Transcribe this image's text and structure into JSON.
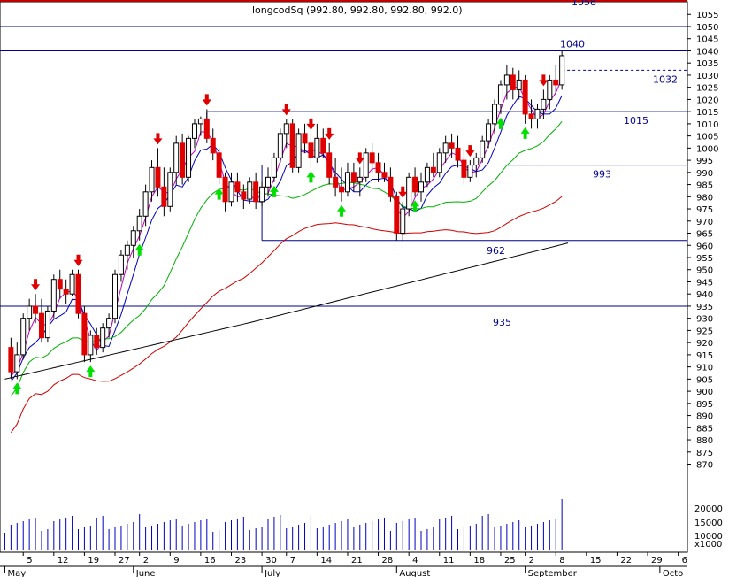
{
  "chart_data": {
    "type": "candlestick",
    "title": "longcodSq (992.80, 992.80, 992.80, 992.0)",
    "ylim": [
      860,
      1058
    ],
    "y_ticks": [
      870,
      875,
      880,
      885,
      890,
      895,
      900,
      905,
      910,
      915,
      920,
      925,
      930,
      935,
      940,
      945,
      950,
      955,
      960,
      965,
      970,
      975,
      980,
      985,
      990,
      995,
      1000,
      1005,
      1010,
      1015,
      1020,
      1025,
      1030,
      1035,
      1040,
      1045,
      1050,
      1055
    ],
    "volume_ticks": [
      "20000",
      "15000",
      "10000",
      "x1000"
    ],
    "x_day_labels": [
      {
        "label": "5",
        "idx": 3
      },
      {
        "label": "12",
        "idx": 8
      },
      {
        "label": "19",
        "idx": 13
      },
      {
        "label": "27",
        "idx": 18
      },
      {
        "label": "2",
        "idx": 22
      },
      {
        "label": "9",
        "idx": 27
      },
      {
        "label": "16",
        "idx": 32
      },
      {
        "label": "23",
        "idx": 37
      },
      {
        "label": "30",
        "idx": 42
      },
      {
        "label": "7",
        "idx": 46
      },
      {
        "label": "14",
        "idx": 51
      },
      {
        "label": "21",
        "idx": 56
      },
      {
        "label": "28",
        "idx": 61
      },
      {
        "label": "4",
        "idx": 66
      },
      {
        "label": "11",
        "idx": 71
      },
      {
        "label": "18",
        "idx": 76
      },
      {
        "label": "25",
        "idx": 81
      },
      {
        "label": "2",
        "idx": 85
      },
      {
        "label": "8",
        "idx": 90
      },
      {
        "label": "15",
        "idx": 95
      },
      {
        "label": "22",
        "idx": 100
      },
      {
        "label": "29",
        "idx": 105
      },
      {
        "label": "6",
        "idx": 110
      }
    ],
    "x_month_labels": [
      {
        "label": "May",
        "idx": 0
      },
      {
        "label": "June",
        "idx": 21
      },
      {
        "label": "July",
        "idx": 42
      },
      {
        "label": "August",
        "idx": 64
      },
      {
        "label": "September",
        "idx": 85
      },
      {
        "label": "Octo",
        "idx": 107
      }
    ],
    "levels": [
      {
        "value": 1050,
        "label": "",
        "x_start_idx": 0,
        "x_end_idx": 111,
        "style": "solid"
      },
      {
        "value": 1040,
        "label": "1040",
        "x_start_idx": 0,
        "x_end_idx": 111,
        "style": "solid"
      },
      {
        "value": 1032,
        "label": "1032",
        "x_start_idx": 91,
        "x_end_idx": 111,
        "style": "dashed"
      },
      {
        "value": 1015,
        "label": "1015",
        "x_start_idx": 33,
        "x_end_idx": 111,
        "style": "solid"
      },
      {
        "value": 993,
        "label": "993",
        "x_start_idx": 82,
        "x_end_idx": 111,
        "style": "solid"
      },
      {
        "value": 962,
        "label": "962",
        "x_start_idx": 42,
        "x_end_idx": 111,
        "style": "solid"
      },
      {
        "value": 935,
        "label": "935",
        "x_start_idx": 0,
        "x_end_idx": 111,
        "style": "solid"
      }
    ],
    "level_extra_label": "1058",
    "channel_verticals": [
      {
        "idx": 42,
        "from": 962,
        "to": 993
      },
      {
        "idx": 33,
        "from": 1015,
        "to": 1012
      }
    ],
    "candles": [
      [
        918,
        922,
        905,
        908
      ],
      [
        908,
        920,
        905,
        915
      ],
      [
        915,
        932,
        913,
        930
      ],
      [
        930,
        938,
        925,
        935
      ],
      [
        935,
        940,
        928,
        932
      ],
      [
        932,
        938,
        920,
        922
      ],
      [
        922,
        935,
        920,
        933
      ],
      [
        933,
        948,
        930,
        946
      ],
      [
        946,
        950,
        938,
        942
      ],
      [
        942,
        946,
        936,
        940
      ],
      [
        940,
        950,
        939,
        948
      ],
      [
        948,
        950,
        930,
        932
      ],
      [
        932,
        935,
        912,
        915
      ],
      [
        915,
        925,
        912,
        923
      ],
      [
        923,
        926,
        915,
        918
      ],
      [
        918,
        928,
        916,
        926
      ],
      [
        926,
        932,
        922,
        930
      ],
      [
        930,
        950,
        928,
        948
      ],
      [
        948,
        958,
        945,
        956
      ],
      [
        956,
        962,
        950,
        960
      ],
      [
        960,
        968,
        955,
        966
      ],
      [
        966,
        975,
        962,
        972
      ],
      [
        972,
        985,
        968,
        982
      ],
      [
        982,
        995,
        978,
        992
      ],
      [
        992,
        1000,
        980,
        984
      ],
      [
        984,
        992,
        972,
        976
      ],
      [
        976,
        992,
        974,
        990
      ],
      [
        990,
        1005,
        985,
        1002
      ],
      [
        1002,
        1006,
        985,
        988
      ],
      [
        988,
        1005,
        986,
        1004
      ],
      [
        1004,
        1012,
        1000,
        1010
      ],
      [
        1010,
        1013,
        1005,
        1012
      ],
      [
        1012,
        1016,
        1002,
        1004
      ],
      [
        1004,
        1008,
        995,
        998
      ],
      [
        998,
        1000,
        985,
        988
      ],
      [
        988,
        990,
        974,
        978
      ],
      [
        978,
        990,
        976,
        986
      ],
      [
        986,
        990,
        978,
        982
      ],
      [
        982,
        985,
        975,
        979
      ],
      [
        979,
        988,
        977,
        986
      ],
      [
        986,
        990,
        975,
        978
      ],
      [
        978,
        986,
        976,
        984
      ],
      [
        984,
        992,
        980,
        988
      ],
      [
        988,
        998,
        986,
        996
      ],
      [
        996,
        1008,
        994,
        1006
      ],
      [
        1006,
        1012,
        1000,
        1010
      ],
      [
        1010,
        1012,
        990,
        992
      ],
      [
        992,
        1008,
        990,
        1006
      ],
      [
        1006,
        1010,
        998,
        1002
      ],
      [
        1002,
        1006,
        992,
        996
      ],
      [
        996,
        1010,
        994,
        1004
      ],
      [
        1004,
        1008,
        996,
        998
      ],
      [
        998,
        1002,
        985,
        988
      ],
      [
        988,
        996,
        980,
        984
      ],
      [
        984,
        992,
        978,
        982
      ],
      [
        982,
        994,
        980,
        990
      ],
      [
        990,
        994,
        982,
        986
      ],
      [
        986,
        992,
        980,
        988
      ],
      [
        988,
        1000,
        986,
        998
      ],
      [
        998,
        1002,
        990,
        994
      ],
      [
        994,
        998,
        986,
        990
      ],
      [
        990,
        994,
        986,
        988
      ],
      [
        988,
        992,
        978,
        980
      ],
      [
        980,
        982,
        962,
        965
      ],
      [
        965,
        978,
        962,
        975
      ],
      [
        975,
        990,
        972,
        988
      ],
      [
        988,
        992,
        980,
        982
      ],
      [
        982,
        990,
        978,
        986
      ],
      [
        986,
        994,
        984,
        992
      ],
      [
        992,
        998,
        988,
        990
      ],
      [
        990,
        1000,
        988,
        998
      ],
      [
        998,
        1005,
        994,
        1002
      ],
      [
        1002,
        1006,
        996,
        1000
      ],
      [
        1000,
        1005,
        992,
        995
      ],
      [
        995,
        1000,
        985,
        988
      ],
      [
        988,
        995,
        986,
        993
      ],
      [
        993,
        998,
        988,
        996
      ],
      [
        996,
        1005,
        994,
        1003
      ],
      [
        1003,
        1012,
        1000,
        1010
      ],
      [
        1010,
        1020,
        1006,
        1018
      ],
      [
        1018,
        1028,
        1014,
        1026
      ],
      [
        1026,
        1034,
        1020,
        1030
      ],
      [
        1030,
        1033,
        1020,
        1024
      ],
      [
        1024,
        1032,
        1020,
        1028
      ],
      [
        1028,
        1030,
        1010,
        1014
      ],
      [
        1014,
        1020,
        1008,
        1012
      ],
      [
        1012,
        1018,
        1008,
        1016
      ],
      [
        1016,
        1024,
        1012,
        1020
      ],
      [
        1020,
        1030,
        1016,
        1028
      ],
      [
        1028,
        1034,
        1022,
        1026
      ],
      [
        1026,
        1040,
        1024,
        1038
      ]
    ],
    "sma_short": [],
    "volume_note": "bars per session; last session spike",
    "signals_up_idx": [
      1,
      13,
      21,
      34,
      43,
      49,
      54,
      66,
      80,
      84,
      93
    ],
    "signals_down_idx": [
      4,
      11,
      24,
      32,
      45,
      49,
      52,
      57,
      64,
      75,
      87,
      91,
      99
    ]
  }
}
